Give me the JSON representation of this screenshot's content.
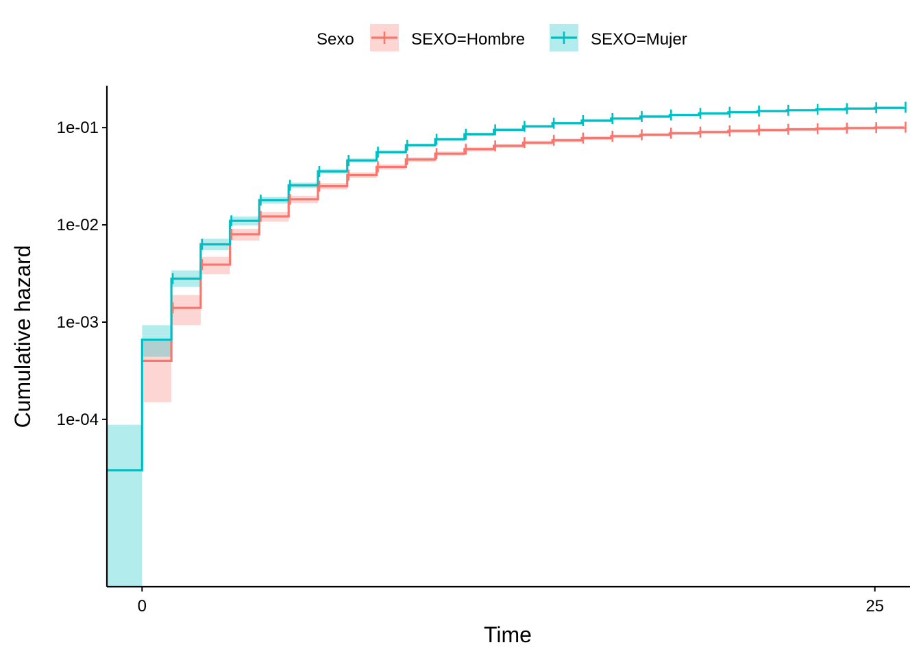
{
  "chart_data": {
    "type": "line",
    "step": true,
    "xlabel": "Time",
    "ylabel": "Cumulative hazard",
    "xlim": [
      -1.2,
      26.2
    ],
    "ylim": [
      1.9e-06,
      0.27
    ],
    "y_scale": "log",
    "x_ticks": [
      0,
      25
    ],
    "x_tick_labels": [
      "0",
      "25"
    ],
    "y_ticks": [
      0.0001,
      0.001,
      0.01,
      0.1
    ],
    "y_tick_labels": [
      "1e-04",
      "1e-03",
      "1e-02",
      "1e-01"
    ],
    "grid": false,
    "legend": {
      "title": "Sexo",
      "position": "top"
    },
    "series": [
      {
        "name": "SEXO=Hombre",
        "color": "#F8766D",
        "x": [
          0,
          1,
          2,
          3,
          4,
          5,
          6,
          7,
          8,
          9,
          10,
          11,
          12,
          13,
          14,
          15,
          16,
          17,
          18,
          19,
          20,
          21,
          22,
          23,
          24,
          25,
          26
        ],
        "y": [
          0.0004,
          0.0014,
          0.0039,
          0.008,
          0.0122,
          0.0183,
          0.025,
          0.0325,
          0.0395,
          0.047,
          0.054,
          0.06,
          0.065,
          0.07,
          0.074,
          0.078,
          0.0815,
          0.0845,
          0.0875,
          0.09,
          0.0925,
          0.0945,
          0.096,
          0.0975,
          0.099,
          0.1,
          0.101
        ],
        "lower": [
          0.00015,
          0.00093,
          0.0031,
          0.0069,
          0.0108,
          0.0167,
          0.0231,
          0.0303,
          0.0371,
          0.0444,
          0.0512,
          0.057,
          0.062,
          0.0668,
          0.0708,
          0.0747,
          0.0781,
          0.081,
          0.084,
          0.0864,
          0.0888,
          0.0908,
          0.0923,
          0.0937,
          0.0952,
          0.0962,
          0.0972
        ],
        "upper": [
          0.00065,
          0.0019,
          0.0047,
          0.0091,
          0.0136,
          0.0199,
          0.0269,
          0.0347,
          0.0419,
          0.0496,
          0.0568,
          0.063,
          0.068,
          0.0732,
          0.0772,
          0.0813,
          0.0849,
          0.088,
          0.091,
          0.0936,
          0.0962,
          0.0982,
          0.0997,
          0.1013,
          0.1028,
          0.1038,
          0.1048
        ]
      },
      {
        "name": "SEXO=Mujer",
        "color": "#00BFC4",
        "x": [
          -1.2,
          0,
          1,
          2,
          3,
          4,
          5,
          6,
          7,
          8,
          9,
          10,
          11,
          12,
          13,
          14,
          15,
          16,
          17,
          18,
          19,
          20,
          21,
          22,
          23,
          24,
          25,
          26
        ],
        "y": [
          3e-05,
          0.00066,
          0.0028,
          0.0063,
          0.011,
          0.018,
          0.0255,
          0.0355,
          0.046,
          0.056,
          0.066,
          0.076,
          0.0855,
          0.095,
          0.103,
          0.111,
          0.118,
          0.124,
          0.13,
          0.135,
          0.14,
          0.144,
          0.148,
          0.151,
          0.154,
          0.157,
          0.16,
          0.162
        ],
        "lower": [
          1.9e-06,
          0.00044,
          0.0023,
          0.0055,
          0.0099,
          0.0166,
          0.0239,
          0.0336,
          0.0438,
          0.0536,
          0.0634,
          0.0732,
          0.0825,
          0.0918,
          0.0997,
          0.1076,
          0.1145,
          0.1204,
          0.1263,
          0.1312,
          0.1362,
          0.1401,
          0.1441,
          0.147,
          0.15,
          0.153,
          0.156,
          0.158
        ],
        "upper": [
          8.8e-05,
          0.00093,
          0.0034,
          0.0072,
          0.0122,
          0.0195,
          0.0272,
          0.0375,
          0.0483,
          0.0585,
          0.0687,
          0.0789,
          0.0886,
          0.0983,
          0.1064,
          0.1145,
          0.1216,
          0.1277,
          0.1338,
          0.1389,
          0.144,
          0.1481,
          0.1521,
          0.1552,
          0.1583,
          0.1613,
          0.1644,
          0.1664
        ]
      }
    ]
  }
}
